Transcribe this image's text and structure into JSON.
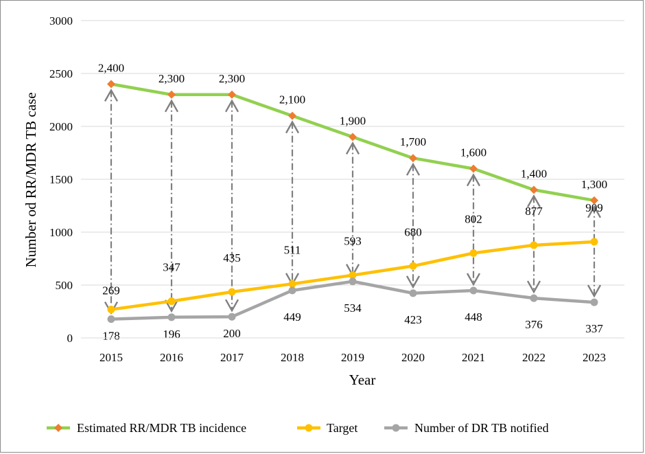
{
  "chart_data": {
    "type": "line",
    "xlabel": "Year",
    "ylabel": "Number od RR/MDR TB case",
    "ylim": [
      0,
      3000
    ],
    "yticks": [
      "0",
      "500",
      "1000",
      "1500",
      "2000",
      "2500",
      "3000"
    ],
    "ytick_values": [
      0,
      500,
      1000,
      1500,
      2000,
      2500,
      3000
    ],
    "categories": [
      "2015",
      "2016",
      "2017",
      "2018",
      "2019",
      "2020",
      "2021",
      "2022",
      "2023"
    ],
    "grid": true,
    "legend_position": "bottom",
    "series": [
      {
        "name": "Estimated  RR/MDR TB incidence",
        "color": "#92d050",
        "marker": "diamond",
        "marker_color": "#ed7d31",
        "values": [
          2400,
          2300,
          2300,
          2100,
          1900,
          1700,
          1600,
          1400,
          1300
        ],
        "labels": [
          "2,400",
          "2,300",
          "2,300",
          "2,100",
          "1,900",
          "1,700",
          "1,600",
          "1,400",
          "1,300"
        ]
      },
      {
        "name": "Target",
        "color": "#ffc000",
        "marker": "circle",
        "marker_color": "#ffc000",
        "values": [
          269,
          347,
          435,
          511,
          593,
          680,
          802,
          877,
          909
        ],
        "labels": [
          "269",
          "347",
          "435",
          "511",
          "593",
          "680",
          "802",
          "877",
          "909"
        ]
      },
      {
        "name": "Number of DR  TB notified",
        "color": "#a5a5a5",
        "marker": "circle",
        "marker_color": "#a5a5a5",
        "values": [
          178,
          196,
          200,
          449,
          534,
          423,
          448,
          376,
          337
        ],
        "labels": [
          "178",
          "196",
          "200",
          "449",
          "534",
          "423",
          "448",
          "376",
          "337"
        ]
      }
    ],
    "gap_arrows": {
      "style": "dash-dot double-headed arrows from incidence to notified",
      "color": "#7f7f7f"
    }
  }
}
